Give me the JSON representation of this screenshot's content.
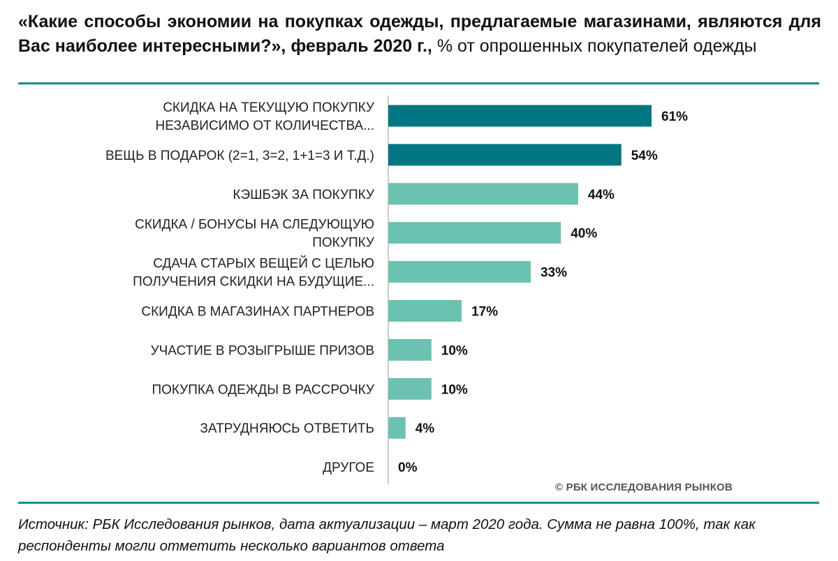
{
  "header": {
    "title_bold": "«Какие способы экономии на покупках одежды, предлагаемые магазинами, являются для Вас наиболее интересными?», февраль 2020 г.,",
    "title_regular": "% от опрошенных покупателей одежды"
  },
  "chart_data": {
    "type": "bar",
    "orientation": "horizontal",
    "title": "«Какие способы экономии на покупках одежды, предлагаемые магазинами, являются для Вас наиболее интересными?», февраль 2020 г., % от опрошенных покупателей одежды",
    "unit": "%",
    "xlim": [
      0,
      65
    ],
    "grid": false,
    "categories": [
      [
        "СКИДКА НА ТЕКУЩУЮ ПОКУПКУ",
        "НЕЗАВИСИМО ОТ КОЛИЧЕСТВА..."
      ],
      [
        "ВЕЩЬ В ПОДАРОК (2=1, 3=2, 1+1=3 И Т.Д.)"
      ],
      [
        "КЭШБЭК ЗА ПОКУПКУ"
      ],
      [
        "СКИДКА / БОНУСЫ НА СЛЕДУЮЩУЮ",
        "ПОКУПКУ"
      ],
      [
        "СДАЧА СТАРЫХ ВЕЩЕЙ С ЦЕЛЬЮ",
        "ПОЛУЧЕНИЯ СКИДКИ НА БУДУЩИЕ..."
      ],
      [
        "СКИДКА В МАГАЗИНАХ ПАРТНЕРОВ"
      ],
      [
        "УЧАСТИЕ В РОЗЫГРЫШЕ ПРИЗОВ"
      ],
      [
        "ПОКУПКА ОДЕЖДЫ В РАССРОЧКУ"
      ],
      [
        "ЗАТРУДНЯЮСЬ ОТВЕТИТЬ"
      ],
      [
        "ДРУГОЕ"
      ]
    ],
    "values": [
      61,
      54,
      44,
      40,
      33,
      17,
      10,
      10,
      4,
      0
    ],
    "value_labels": [
      "61%",
      "54%",
      "44%",
      "40%",
      "33%",
      "17%",
      "10%",
      "10%",
      "4%",
      "0%"
    ],
    "highlight_count": 2,
    "colors": {
      "highlight": "#007682",
      "regular": "#6cc2b0",
      "axis": "#bbbbbb"
    }
  },
  "footer": {
    "copyright": "© РБК ИССЛЕДОВАНИЯ РЫНКОВ",
    "source": "Источник: РБК Исследования рынков, дата актуализации – март 2020 года. Сумма не равна 100%, так как респонденты могли отметить несколько вариантов ответа"
  }
}
